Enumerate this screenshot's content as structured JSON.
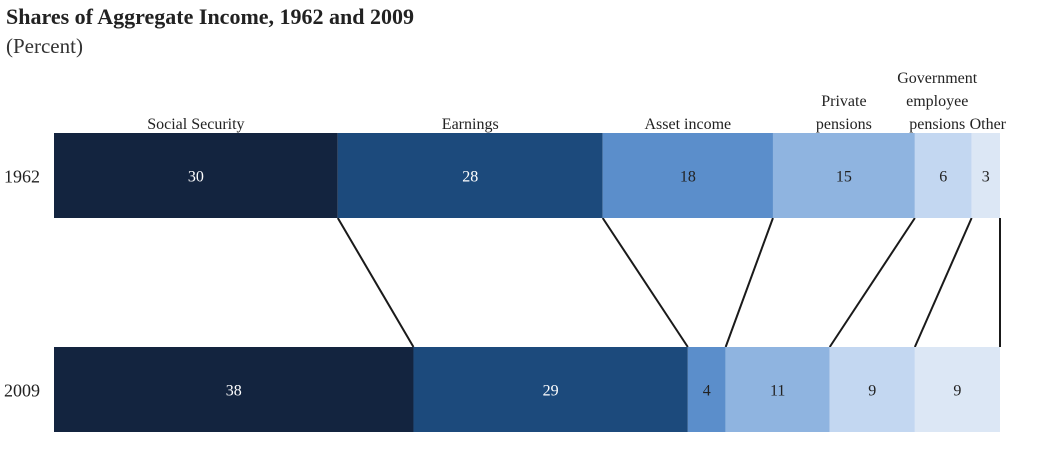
{
  "title": "Shares of Aggregate Income, 1962 and 2009",
  "subtitle": "(Percent)",
  "chart_data": {
    "type": "bar",
    "orientation": "horizontal-stacked",
    "title": "Shares of Aggregate Income, 1962 and 2009",
    "subtitle": "(Percent)",
    "categories": [
      "1962",
      "2009"
    ],
    "series": [
      {
        "name": "Social Security",
        "label_lines": [
          "Social Security"
        ],
        "color": "#13243f",
        "text_color": "#ffffff",
        "values": [
          30,
          38
        ]
      },
      {
        "name": "Earnings",
        "label_lines": [
          "Earnings"
        ],
        "color": "#1c4a7c",
        "text_color": "#ffffff",
        "values": [
          28,
          29
        ]
      },
      {
        "name": "Asset income",
        "label_lines": [
          "Asset income"
        ],
        "color": "#5b8ecb",
        "text_color": "#222222",
        "values": [
          18,
          4
        ]
      },
      {
        "name": "Private pensions",
        "label_lines": [
          "Private",
          "pensions"
        ],
        "color": "#8fb4e0",
        "text_color": "#222222",
        "values": [
          15,
          11
        ]
      },
      {
        "name": "Government employee pensions",
        "label_lines": [
          "Government",
          "employee",
          "pensions"
        ],
        "color": "#c3d7f1",
        "text_color": "#222222",
        "values": [
          6,
          9
        ]
      },
      {
        "name": "Other",
        "label_lines": [
          "Other"
        ],
        "color": "#dce7f5",
        "text_color": "#222222",
        "values": [
          3,
          9
        ]
      }
    ],
    "xlim": [
      0,
      100
    ],
    "legend": "labels above 1962 bar",
    "grid": false
  }
}
